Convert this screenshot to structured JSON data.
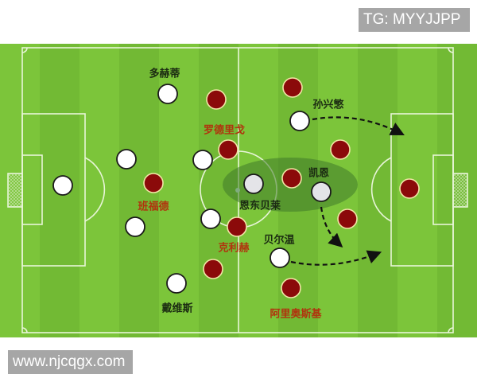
{
  "watermarks": {
    "top": "TG: MYYJJPP",
    "bottom": "www.njcqgx.com"
  },
  "colors": {
    "pitch": "#7cc53a",
    "lines": "#e8f5d8",
    "team_white": "#ffffff",
    "team_red": "#8b0a0a",
    "label_dark": "#1b2b12",
    "label_red": "#b0340e",
    "highlight": "#3f7a2a"
  },
  "labels": [
    {
      "text": "多赫蒂",
      "team": "white"
    },
    {
      "text": "罗德里戈",
      "team": "red"
    },
    {
      "text": "孙兴慜",
      "team": "white"
    },
    {
      "text": "凯恩",
      "team": "white"
    },
    {
      "text": "班福德",
      "team": "red"
    },
    {
      "text": "恩东贝莱",
      "team": "white"
    },
    {
      "text": "贝尔温",
      "team": "white"
    },
    {
      "text": "克利赫",
      "team": "red"
    },
    {
      "text": "戴维斯",
      "team": "white"
    },
    {
      "text": "阿里奥斯基",
      "team": "red"
    }
  ]
}
